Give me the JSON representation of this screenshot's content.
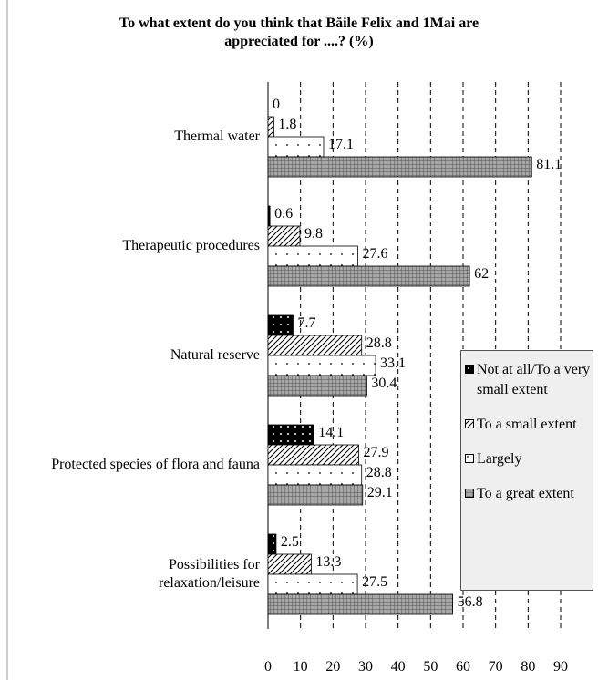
{
  "chart_data": {
    "type": "bar",
    "orientation": "horizontal",
    "title": "To what extent do you think that Băile Felix and 1Mai are appreciated for ....? (%)",
    "categories": [
      "Thermal water",
      "Therapeutic procedures",
      "Natural reserve",
      "Protected species of flora and fauna",
      "Possibilities for relaxation/leisure"
    ],
    "series": [
      {
        "name": "Not at all/To a very small extent",
        "color": "#000000",
        "values": [
          0,
          0.6,
          7.7,
          14.1,
          2.5
        ]
      },
      {
        "name": "To a small extent",
        "color": "#ffffff",
        "values": [
          1.8,
          9.8,
          28.8,
          27.9,
          13.3
        ]
      },
      {
        "name": "Largely",
        "color": "#ffffff",
        "values": [
          17.1,
          27.6,
          33.1,
          28.8,
          27.5
        ]
      },
      {
        "name": "To a great extent",
        "color": "#a6a6a6",
        "values": [
          81.1,
          62,
          30.4,
          29.1,
          56.8
        ]
      }
    ],
    "xlim": [
      0,
      90
    ],
    "xticks": [
      0,
      10,
      20,
      30,
      40,
      50,
      60,
      70,
      80,
      90
    ],
    "grid": true,
    "legend": "right"
  }
}
